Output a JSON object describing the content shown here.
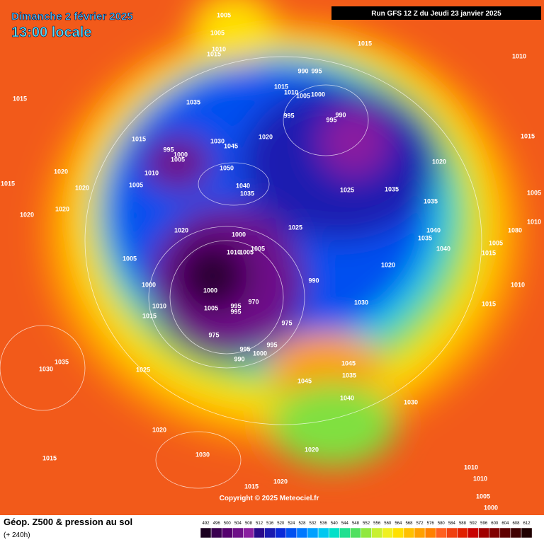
{
  "header": {
    "title": "Dimanche 2 février 2025",
    "subtitle": "13:00 locale",
    "run": "Run GFS 12 Z du Jeudi 23 janvier 2025"
  },
  "map": {
    "copyright": "Copyright © 2025 Meteociel.fr",
    "isobar_labels": [
      1005,
      1005,
      1010,
      1015,
      1015,
      1010,
      1015,
      1035,
      990,
      995,
      1015,
      1010,
      1005,
      1000,
      990,
      995,
      995,
      1020,
      1015,
      995,
      1000,
      1005,
      1030,
      1045,
      1020,
      1015,
      1020,
      1010,
      1050,
      1020,
      1015,
      1005,
      1040,
      1035,
      1025,
      1035,
      1005,
      1035,
      1020,
      1020,
      1010,
      1040,
      1080,
      1025,
      1020,
      1000,
      1035,
      1005,
      1040,
      1010,
      1005,
      1005,
      1015,
      1005,
      1020,
      990,
      1000,
      1010,
      1000,
      1030,
      970,
      995,
      995,
      1005,
      1010,
      1015,
      1015,
      975,
      975,
      995,
      995,
      1000,
      990,
      1030,
      1035,
      1025,
      1045,
      1045,
      1035,
      1040,
      1030,
      1020,
      1030,
      1015,
      1020,
      1010,
      1010,
      1015,
      1020,
      1005,
      1000
    ]
  },
  "footer": {
    "title": "Géop. Z500 & pression au sol",
    "subtitle": "(+ 240h)",
    "colorbar": {
      "labels": [
        492,
        496,
        500,
        504,
        508,
        512,
        516,
        520,
        524,
        528,
        532,
        536,
        540,
        544,
        548,
        552,
        556,
        560,
        564,
        568,
        572,
        576,
        580,
        584,
        588,
        592,
        596,
        600,
        604,
        608,
        612
      ],
      "colors": [
        "#1a0020",
        "#3a0050",
        "#55006e",
        "#6e1088",
        "#8a1fa0",
        "#2a0a8a",
        "#1a1ab0",
        "#0a2ad8",
        "#0050f0",
        "#0078ff",
        "#00a0ff",
        "#00c8f0",
        "#00e0c8",
        "#20e090",
        "#50e060",
        "#90e840",
        "#c8f030",
        "#f0f020",
        "#ffe000",
        "#ffc000",
        "#ffa000",
        "#ff8000",
        "#ff6020",
        "#f04010",
        "#e02000",
        "#c80000",
        "#a00000",
        "#800000",
        "#600000",
        "#400000",
        "#200000"
      ]
    }
  }
}
